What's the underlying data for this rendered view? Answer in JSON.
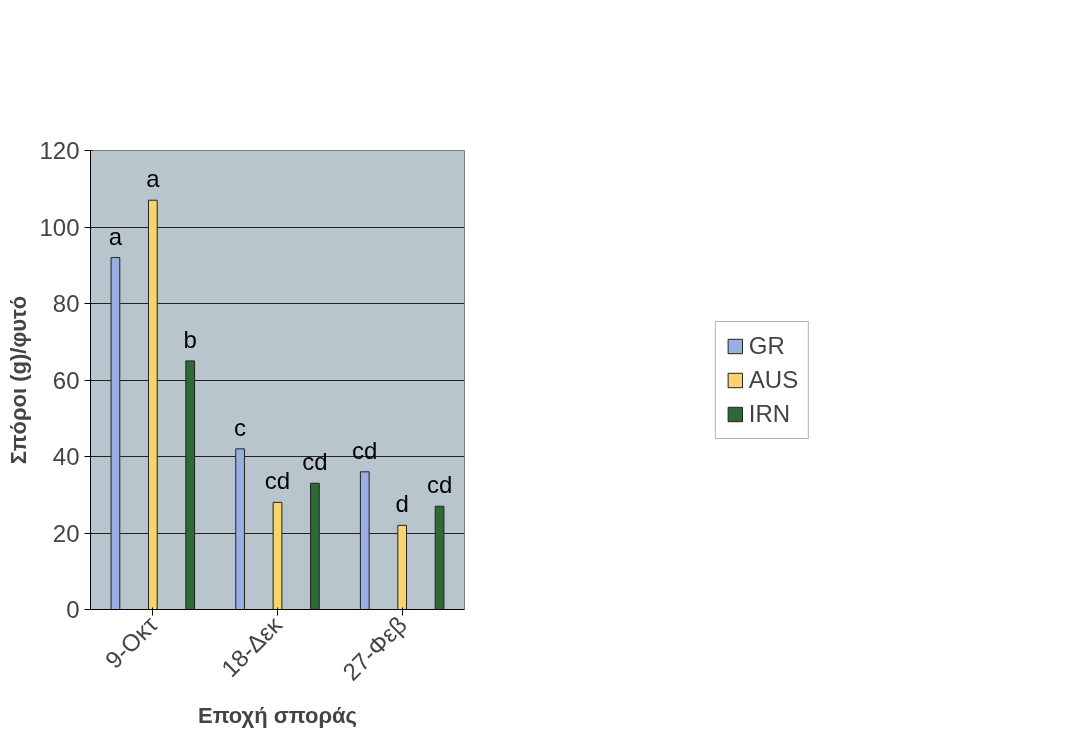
{
  "chart_data": {
    "type": "bar",
    "xlabel": "Εποχή σποράς",
    "ylabel": "Σπόροι (g)/φυτό",
    "categories": [
      "9-Οκτ",
      "18-Δεκ",
      "27-Φεβ"
    ],
    "series": [
      {
        "name": "GR",
        "color": "#9aaee2",
        "values": [
          92,
          42,
          36
        ],
        "value_labels": [
          "a",
          "c",
          "cd"
        ]
      },
      {
        "name": "AUS",
        "color": "#f8d46c",
        "values": [
          107,
          28,
          22
        ],
        "value_labels": [
          "a",
          "cd",
          "d"
        ]
      },
      {
        "name": "IRN",
        "color": "#2f6a36",
        "values": [
          65,
          33,
          27
        ],
        "value_labels": [
          "b",
          "cd",
          "cd"
        ]
      }
    ],
    "ylim": [
      0,
      120
    ],
    "yticks": [
      0,
      20,
      40,
      60,
      80,
      100,
      120
    ],
    "grid": "y",
    "legend": "right"
  }
}
